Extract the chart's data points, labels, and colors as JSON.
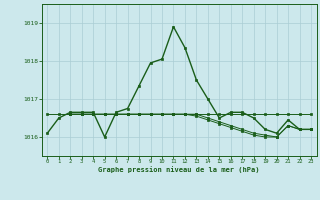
{
  "title": "Graphe pression niveau de la mer (hPa)",
  "background_color": "#cce8ec",
  "grid_color": "#aacdd4",
  "line_color": "#1a5e1a",
  "text_color": "#1a5e1a",
  "xlim": [
    -0.5,
    23.5
  ],
  "ylim": [
    1015.5,
    1019.5
  ],
  "yticks": [
    1016,
    1017,
    1018,
    1019
  ],
  "xticks": [
    0,
    1,
    2,
    3,
    4,
    5,
    6,
    7,
    8,
    9,
    10,
    11,
    12,
    13,
    14,
    15,
    16,
    17,
    18,
    19,
    20,
    21,
    22,
    23
  ],
  "series1_x": [
    0,
    1,
    2,
    3,
    4,
    5,
    6,
    7,
    8,
    9,
    10,
    11,
    12,
    13,
    14,
    15,
    16,
    17,
    18,
    19,
    20,
    21,
    22,
    23
  ],
  "series1_y": [
    1016.1,
    1016.5,
    1016.65,
    1016.65,
    1016.65,
    1016.0,
    1016.65,
    1016.75,
    1017.35,
    1017.95,
    1018.05,
    1018.9,
    1018.35,
    1017.5,
    1017.0,
    1016.5,
    1016.65,
    1016.65,
    1016.5,
    1016.2,
    1016.1,
    1016.45,
    1016.2,
    1016.2
  ],
  "series2_x": [
    0,
    1,
    2,
    3,
    4,
    5,
    6,
    7,
    8,
    9,
    10,
    11,
    12,
    13,
    14,
    15,
    16,
    17,
    18,
    19,
    20,
    21,
    22,
    23
  ],
  "series2_y": [
    1016.6,
    1016.6,
    1016.6,
    1016.6,
    1016.6,
    1016.6,
    1016.6,
    1016.6,
    1016.6,
    1016.6,
    1016.6,
    1016.6,
    1016.6,
    1016.6,
    1016.6,
    1016.6,
    1016.6,
    1016.6,
    1016.6,
    1016.6,
    1016.6,
    1016.6,
    1016.6,
    1016.6
  ],
  "series3_x": [
    2,
    3,
    4,
    5,
    6,
    7,
    8,
    9,
    10,
    11,
    12,
    13,
    14,
    15,
    16,
    17,
    18,
    19,
    20,
    21,
    22,
    23
  ],
  "series3_y": [
    1016.6,
    1016.6,
    1016.6,
    1016.6,
    1016.6,
    1016.6,
    1016.6,
    1016.6,
    1016.6,
    1016.6,
    1016.6,
    1016.6,
    1016.5,
    1016.4,
    1016.3,
    1016.2,
    1016.1,
    1016.05,
    1016.0,
    1016.3,
    1016.2,
    1016.2
  ],
  "series4_x": [
    2,
    3,
    4,
    5,
    6,
    7,
    8,
    9,
    10,
    11,
    12,
    13,
    14,
    15,
    16,
    17,
    18,
    19,
    20,
    21,
    22,
    23
  ],
  "series4_y": [
    1016.6,
    1016.6,
    1016.6,
    1016.6,
    1016.6,
    1016.6,
    1016.6,
    1016.6,
    1016.6,
    1016.6,
    1016.6,
    1016.55,
    1016.45,
    1016.35,
    1016.25,
    1016.15,
    1016.05,
    1016.0,
    1016.0,
    1016.3,
    1016.2,
    1016.2
  ]
}
